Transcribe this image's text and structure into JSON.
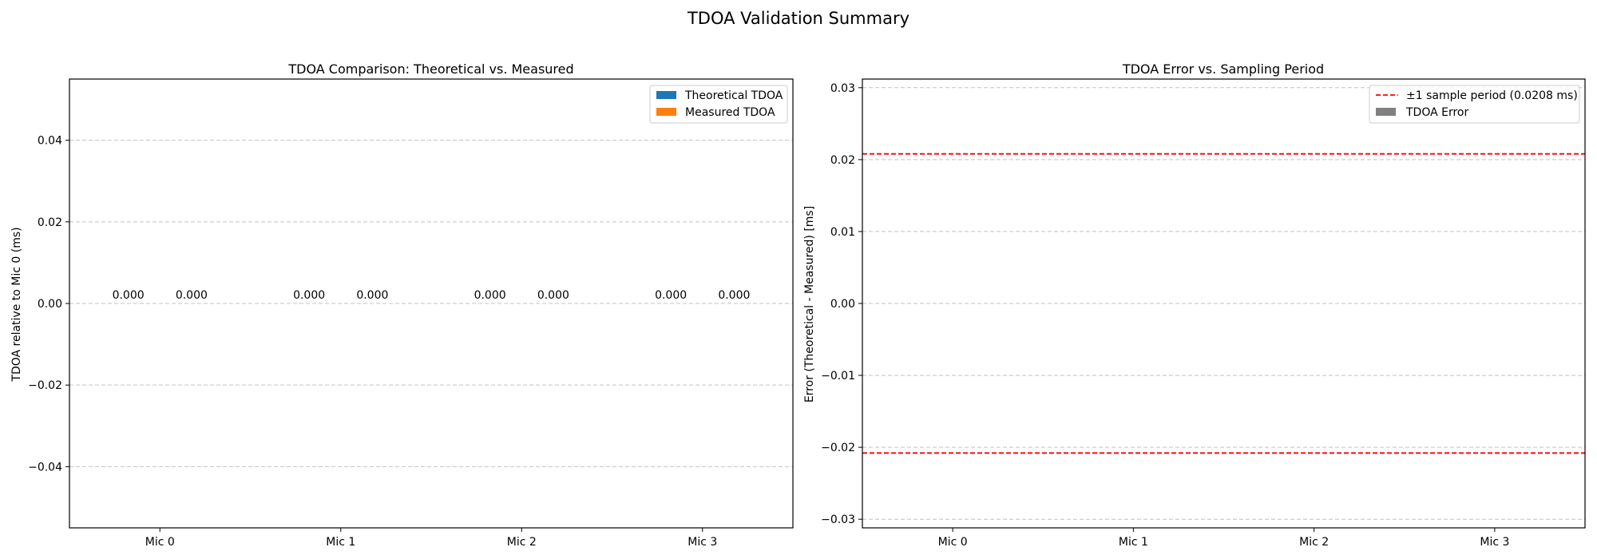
{
  "figure": {
    "title": "TDOA Validation Summary"
  },
  "chart_data": [
    {
      "type": "bar",
      "title": "TDOA Comparison: Theoretical vs. Measured",
      "xlabel": "",
      "ylabel": "TDOA relative to Mic 0 (ms)",
      "categories": [
        "Mic 0",
        "Mic 1",
        "Mic 2",
        "Mic 3"
      ],
      "series": [
        {
          "name": "Theoretical TDOA",
          "values": [
            0,
            0,
            0,
            0
          ],
          "labels": [
            "0.000",
            "0.000",
            "0.000",
            "0.000"
          ],
          "color": "#1f77b4"
        },
        {
          "name": "Measured TDOA",
          "values": [
            0,
            0,
            0,
            0
          ],
          "labels": [
            "0.000",
            "0.000",
            "0.000",
            "0.000"
          ],
          "color": "#ff7f0e"
        }
      ],
      "ylim": [
        -0.055,
        0.055
      ],
      "yticks": [
        -0.04,
        -0.02,
        0.0,
        0.02,
        0.04
      ],
      "ytick_labels": [
        "−0.04",
        "−0.02",
        "0.00",
        "0.02",
        "0.04"
      ],
      "grid": "y",
      "legend": "top-right"
    },
    {
      "type": "bar",
      "title": "TDOA Error vs. Sampling Period",
      "xlabel": "",
      "ylabel": "Error (Theoretical - Measured) [ms]",
      "categories": [
        "Mic 0",
        "Mic 1",
        "Mic 2",
        "Mic 3"
      ],
      "series": [
        {
          "name": "TDOA Error",
          "values": [
            0,
            0,
            0,
            0
          ],
          "color": "#808080"
        }
      ],
      "reference_lines": [
        {
          "name": "±1 sample period (0.0208 ms)",
          "values": [
            0.0208,
            -0.0208
          ],
          "color": "#ff0000",
          "style": "dashed"
        }
      ],
      "ylim": [
        -0.0312,
        0.0312
      ],
      "yticks": [
        -0.03,
        -0.02,
        -0.01,
        0.0,
        0.01,
        0.02,
        0.03
      ],
      "ytick_labels": [
        "−0.03",
        "−0.02",
        "−0.01",
        "0.00",
        "0.01",
        "0.02",
        "0.03"
      ],
      "grid": "y",
      "legend": "top-right"
    }
  ]
}
